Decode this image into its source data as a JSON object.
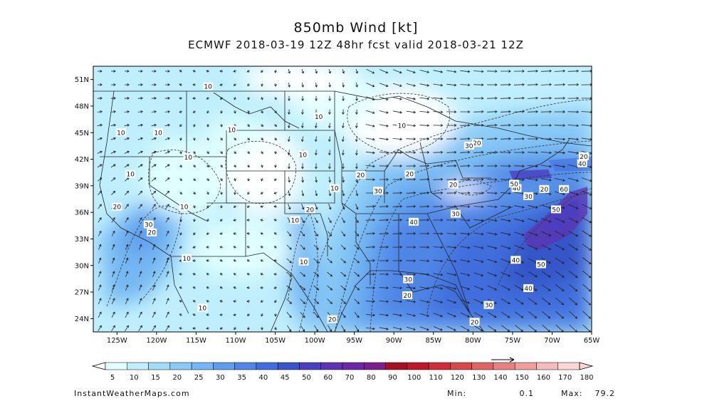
{
  "title": "850mb Wind [kt]",
  "subtitle": "ECMWF 2018-03-19 12Z 48hr fcst valid 2018-03-21 12Z",
  "map": {
    "lon_range": [
      -128,
      -65
    ],
    "lat_range": [
      22.5,
      52.5
    ],
    "lon_ticks": [
      {
        "value": -125,
        "label": "125W"
      },
      {
        "value": -120,
        "label": "120W"
      },
      {
        "value": -115,
        "label": "115W"
      },
      {
        "value": -110,
        "label": "110W"
      },
      {
        "value": -105,
        "label": "105W"
      },
      {
        "value": -100,
        "label": "100W"
      },
      {
        "value": -95,
        "label": "95W"
      },
      {
        "value": -90,
        "label": "90W"
      },
      {
        "value": -85,
        "label": "85W"
      },
      {
        "value": -80,
        "label": "80W"
      },
      {
        "value": -75,
        "label": "75W"
      },
      {
        "value": -70,
        "label": "70W"
      },
      {
        "value": -65,
        "label": "65W"
      }
    ],
    "lat_ticks": [
      {
        "value": 51,
        "label": "51N"
      },
      {
        "value": 48,
        "label": "48N"
      },
      {
        "value": 45,
        "label": "45N"
      },
      {
        "value": 42,
        "label": "42N"
      },
      {
        "value": 39,
        "label": "39N"
      },
      {
        "value": 36,
        "label": "36N"
      },
      {
        "value": 33,
        "label": "33N"
      },
      {
        "value": 30,
        "label": "30N"
      },
      {
        "value": 27,
        "label": "27N"
      },
      {
        "value": 24,
        "label": "24N"
      }
    ],
    "contour_labels": [
      {
        "lon": -113.5,
        "lat": 50.2,
        "text": "10"
      },
      {
        "lon": -99.5,
        "lat": 46.8,
        "text": "10"
      },
      {
        "lon": -110.5,
        "lat": 45.3,
        "text": "10"
      },
      {
        "lon": -124.5,
        "lat": 45.0,
        "text": "10"
      },
      {
        "lon": -119.8,
        "lat": 45.0,
        "text": "10"
      },
      {
        "lon": -101.5,
        "lat": 42.5,
        "text": "10"
      },
      {
        "lon": -116.0,
        "lat": 42.2,
        "text": "10"
      },
      {
        "lon": -89.0,
        "lat": 45.8,
        "text": "10"
      },
      {
        "lon": -123.3,
        "lat": 40.3,
        "text": "10"
      },
      {
        "lon": -97.5,
        "lat": 38.7,
        "text": "10"
      },
      {
        "lon": -116.5,
        "lat": 36.6,
        "text": "10"
      },
      {
        "lon": -102.5,
        "lat": 35.1,
        "text": "10"
      },
      {
        "lon": -116.2,
        "lat": 30.8,
        "text": "10"
      },
      {
        "lon": -101.4,
        "lat": 30.4,
        "text": "10"
      },
      {
        "lon": -114.2,
        "lat": 25.2,
        "text": "10"
      },
      {
        "lon": -125.0,
        "lat": 36.6,
        "text": "20"
      },
      {
        "lon": -100.6,
        "lat": 36.3,
        "text": "20"
      },
      {
        "lon": -120.6,
        "lat": 33.7,
        "text": "20"
      },
      {
        "lon": -94.2,
        "lat": 40.2,
        "text": "20"
      },
      {
        "lon": -88.0,
        "lat": 40.3,
        "text": "20"
      },
      {
        "lon": -82.5,
        "lat": 39.1,
        "text": "20"
      },
      {
        "lon": -79.5,
        "lat": 43.8,
        "text": "20"
      },
      {
        "lon": -71.0,
        "lat": 38.6,
        "text": "20"
      },
      {
        "lon": -66.0,
        "lat": 42.3,
        "text": "20"
      },
      {
        "lon": -88.3,
        "lat": 26.6,
        "text": "20"
      },
      {
        "lon": -97.8,
        "lat": 23.9,
        "text": "20"
      },
      {
        "lon": -79.8,
        "lat": 23.6,
        "text": "20"
      },
      {
        "lon": -121.0,
        "lat": 34.6,
        "text": "30"
      },
      {
        "lon": -92.0,
        "lat": 38.4,
        "text": "30"
      },
      {
        "lon": -82.2,
        "lat": 35.8,
        "text": "30"
      },
      {
        "lon": -80.5,
        "lat": 43.5,
        "text": "30"
      },
      {
        "lon": -73.0,
        "lat": 37.8,
        "text": "30"
      },
      {
        "lon": -88.2,
        "lat": 28.4,
        "text": "30"
      },
      {
        "lon": -78.0,
        "lat": 25.5,
        "text": "30"
      },
      {
        "lon": -87.5,
        "lat": 34.9,
        "text": "40"
      },
      {
        "lon": -74.5,
        "lat": 38.7,
        "text": "40"
      },
      {
        "lon": -74.6,
        "lat": 30.6,
        "text": "40"
      },
      {
        "lon": -73.0,
        "lat": 27.4,
        "text": "40"
      },
      {
        "lon": -66.2,
        "lat": 41.5,
        "text": "40"
      },
      {
        "lon": -74.8,
        "lat": 39.2,
        "text": "50"
      },
      {
        "lon": -71.4,
        "lat": 30.1,
        "text": "50"
      },
      {
        "lon": -69.5,
        "lat": 36.3,
        "text": "50"
      },
      {
        "lon": -68.5,
        "lat": 38.6,
        "text": "60"
      }
    ]
  },
  "colorbar": {
    "levels": [
      "5",
      "10",
      "15",
      "20",
      "25",
      "30",
      "35",
      "40",
      "45",
      "50",
      "60",
      "70",
      "80",
      "90",
      "100",
      "110",
      "120",
      "130",
      "140",
      "150",
      "160",
      "170",
      "180"
    ],
    "colors": [
      "#ffffff",
      "#e1ffff",
      "#bfeffd",
      "#a3dcf9",
      "#8acaf6",
      "#74b7f2",
      "#5f9ded",
      "#4f86e5",
      "#406edc",
      "#3456c8",
      "#4a3fc0",
      "#5e33b3",
      "#6e27a4",
      "#7a1f8c",
      "#a60f26",
      "#c0162c",
      "#cf2e38",
      "#d84848",
      "#e06464",
      "#e88282",
      "#ef9f9f",
      "#f6bcbc",
      "#fbd6d6"
    ]
  },
  "credit": "InstantWeatherMaps.com",
  "min_label": "Min:",
  "min_value": "0.1",
  "max_label": "Max:",
  "max_value": "79.2"
}
